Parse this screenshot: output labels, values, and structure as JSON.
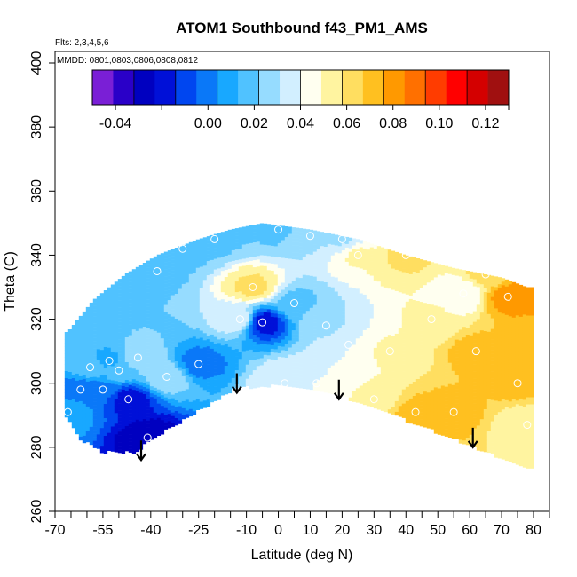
{
  "chart_data": {
    "type": "heatmap",
    "title": "ATOM1 Southbound f43_PM1_AMS",
    "flights_text": "Flts: 2,3,4,5,6",
    "dates_text": "MMDD: 0801,0803,0806,0808,0812",
    "xlabel": "Latitude (deg N)",
    "ylabel": "Theta (C)",
    "xlim": [
      -70,
      85
    ],
    "ylim": [
      260,
      402
    ],
    "x_tick_labels": [
      "-70",
      "-55",
      "-40",
      "-25",
      "-10",
      "0",
      "10",
      "20",
      "30",
      "40",
      "50",
      "60",
      "70",
      "80"
    ],
    "y_tick_labels": [
      "260",
      "280",
      "300",
      "320",
      "340",
      "360",
      "380",
      "400"
    ],
    "colorbar": {
      "range": [
        -0.05,
        0.13
      ],
      "tick_labels": [
        "-0.04",
        "0.00",
        "0.02",
        "0.04",
        "0.06",
        "0.08",
        "0.10",
        "0.12"
      ],
      "colors": [
        "#7a1fd6",
        "#2a00c8",
        "#0000c0",
        "#0010d8",
        "#0046f0",
        "#0a78f8",
        "#18a8ff",
        "#50c2ff",
        "#96dcff",
        "#d2efff",
        "#fffff0",
        "#fff4a0",
        "#ffde60",
        "#ffc020",
        "#ff9900",
        "#ff7000",
        "#ff3c00",
        "#ff0000",
        "#d40000",
        "#a01010"
      ]
    },
    "arrows": [
      {
        "lat": -43,
        "theta": 276
      },
      {
        "lat": -13,
        "theta": 297
      },
      {
        "lat": 19,
        "theta": 295
      },
      {
        "lat": 61,
        "theta": 280
      }
    ],
    "samples": [
      {
        "lat": -66,
        "theta": 291,
        "value": 0.01
      },
      {
        "lat": -62,
        "theta": 298,
        "value": 0.0
      },
      {
        "lat": -59,
        "theta": 305,
        "value": 0.02
      },
      {
        "lat": -55,
        "theta": 298,
        "value": 0.0
      },
      {
        "lat": -53,
        "theta": 307,
        "value": 0.01
      },
      {
        "lat": -50,
        "theta": 304,
        "value": 0.02
      },
      {
        "lat": -47,
        "theta": 295,
        "value": -0.02
      },
      {
        "lat": -44,
        "theta": 308,
        "value": 0.03
      },
      {
        "lat": -41,
        "theta": 283,
        "value": -0.03
      },
      {
        "lat": -38,
        "theta": 335,
        "value": 0.02
      },
      {
        "lat": -35,
        "theta": 302,
        "value": 0.03
      },
      {
        "lat": -30,
        "theta": 342,
        "value": 0.02
      },
      {
        "lat": -25,
        "theta": 306,
        "value": 0.0
      },
      {
        "lat": -20,
        "theta": 345,
        "value": 0.02
      },
      {
        "lat": -12,
        "theta": 320,
        "value": 0.04
      },
      {
        "lat": -8,
        "theta": 330,
        "value": 0.06
      },
      {
        "lat": -5,
        "theta": 319,
        "value": -0.02
      },
      {
        "lat": 0,
        "theta": 348,
        "value": 0.02
      },
      {
        "lat": 2,
        "theta": 300,
        "value": 0.04
      },
      {
        "lat": 5,
        "theta": 325,
        "value": 0.02
      },
      {
        "lat": 10,
        "theta": 346,
        "value": 0.03
      },
      {
        "lat": 12,
        "theta": 300,
        "value": 0.04
      },
      {
        "lat": 15,
        "theta": 318,
        "value": 0.03
      },
      {
        "lat": 20,
        "theta": 345,
        "value": 0.03
      },
      {
        "lat": 22,
        "theta": 312,
        "value": 0.04
      },
      {
        "lat": 25,
        "theta": 340,
        "value": 0.05
      },
      {
        "lat": 30,
        "theta": 295,
        "value": 0.05
      },
      {
        "lat": 35,
        "theta": 310,
        "value": 0.05
      },
      {
        "lat": 40,
        "theta": 340,
        "value": 0.06
      },
      {
        "lat": 43,
        "theta": 291,
        "value": 0.07
      },
      {
        "lat": 48,
        "theta": 320,
        "value": 0.05
      },
      {
        "lat": 55,
        "theta": 291,
        "value": 0.07
      },
      {
        "lat": 58,
        "theta": 328,
        "value": 0.04
      },
      {
        "lat": 62,
        "theta": 310,
        "value": 0.07
      },
      {
        "lat": 65,
        "theta": 334,
        "value": 0.06
      },
      {
        "lat": 72,
        "theta": 327,
        "value": 0.08
      },
      {
        "lat": 75,
        "theta": 300,
        "value": 0.07
      },
      {
        "lat": 78,
        "theta": 287,
        "value": 0.05
      }
    ]
  }
}
